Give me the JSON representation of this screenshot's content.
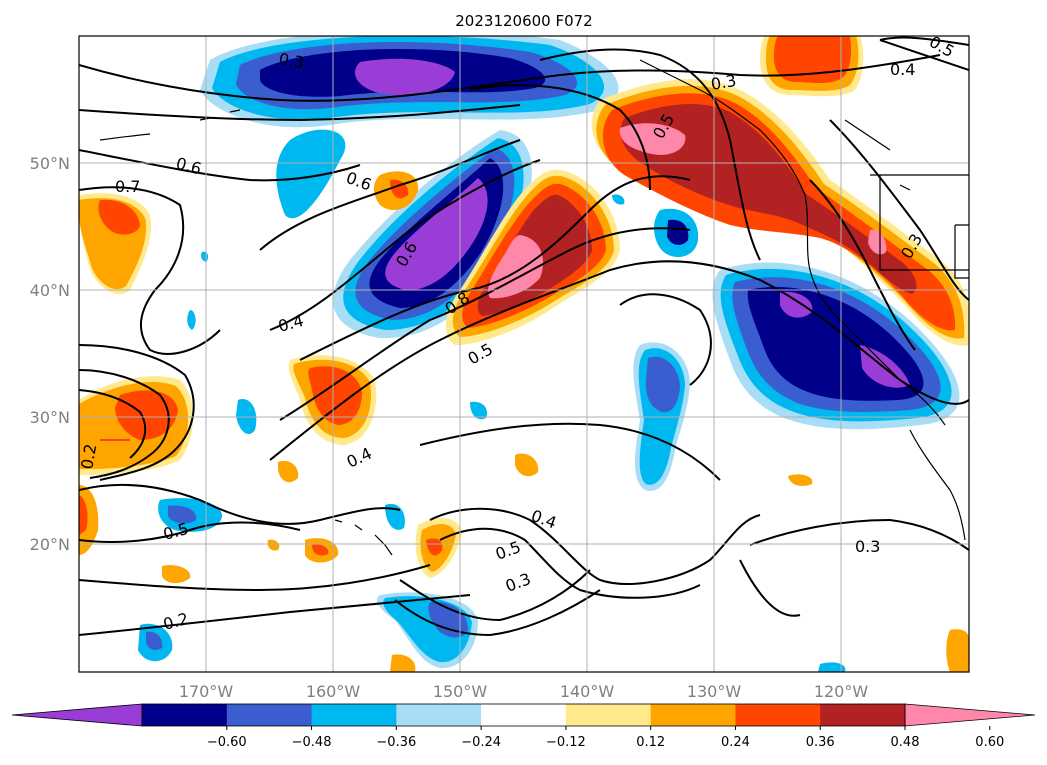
{
  "title": "2023120600 F072",
  "map": {
    "lon_ticks": [
      "170°W",
      "160°W",
      "150°W",
      "140°W",
      "130°W",
      "120°W"
    ],
    "lat_ticks": [
      "50°N",
      "40°N",
      "30°N",
      "20°N"
    ]
  },
  "colorbar": {
    "ticks": [
      "−0.60",
      "−0.48",
      "−0.36",
      "−0.24",
      "−0.12",
      "0.12",
      "0.24",
      "0.36",
      "0.48",
      "0.60"
    ],
    "colors": [
      "#9a3dd6",
      "#00008b",
      "#3a5ed0",
      "#00b8f0",
      "#a8ddf6",
      "#ffffff",
      "#ffe98a",
      "#ffa500",
      "#ff4500",
      "#b22222",
      "#ff88aa"
    ]
  },
  "contour_labels": [
    "0.6",
    "0.6",
    "0.7",
    "0.6",
    "0.4",
    "0.8",
    "0.5",
    "0.4",
    "0.3",
    "0.4",
    "0.5",
    "0.3",
    "0.5",
    "0.4",
    "0.3",
    "0.2",
    "0.5",
    "0.2",
    "0.3",
    "0.3",
    "0.5"
  ]
}
